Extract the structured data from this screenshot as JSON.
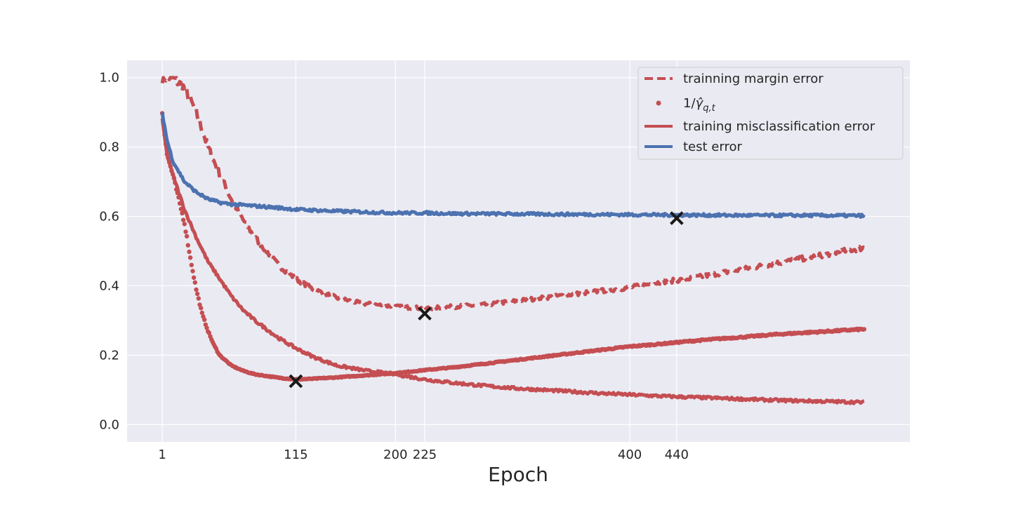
{
  "chart_data": {
    "type": "line",
    "title": "",
    "xlabel": "Epoch",
    "ylabel": "",
    "xlim": [
      -29,
      639
    ],
    "ylim": [
      -0.05,
      1.05
    ],
    "x_ticks": [
      1,
      115,
      200,
      225,
      400,
      440
    ],
    "x_tick_labels": [
      "1",
      "115",
      "200",
      "225",
      "400",
      "440"
    ],
    "y_ticks": [
      0.0,
      0.2,
      0.4,
      0.6,
      0.8,
      1.0
    ],
    "y_tick_labels": [
      "0.0",
      "0.2",
      "0.4",
      "0.6",
      "0.8",
      "1.0"
    ],
    "grid": true,
    "legend_position": "top-right",
    "colors": {
      "red": "#c44e52",
      "blue": "#4c72b0",
      "background": "#eaeaf2",
      "grid": "#ffffff",
      "marker": "#1a1a1a"
    },
    "series": [
      {
        "name": "trainning margin error",
        "style": "dashed",
        "color": "#c44e52",
        "x": [
          1,
          10,
          20,
          30,
          40,
          50,
          60,
          70,
          80,
          90,
          100,
          115,
          130,
          150,
          170,
          200,
          225,
          250,
          275,
          300,
          325,
          350,
          375,
          400,
          425,
          450,
          475,
          500,
          525,
          550,
          575,
          600
        ],
        "y": [
          1.0,
          1.0,
          0.97,
          0.9,
          0.8,
          0.72,
          0.65,
          0.59,
          0.54,
          0.5,
          0.46,
          0.42,
          0.39,
          0.365,
          0.35,
          0.34,
          0.335,
          0.34,
          0.345,
          0.355,
          0.365,
          0.375,
          0.385,
          0.395,
          0.41,
          0.42,
          0.435,
          0.45,
          0.465,
          0.48,
          0.495,
          0.51
        ]
      },
      {
        "name": "1/γ̂_{q,t}",
        "style": "dots",
        "color": "#c44e52",
        "x": [
          1,
          5,
          10,
          15,
          20,
          25,
          30,
          35,
          40,
          45,
          50,
          60,
          70,
          80,
          100,
          115,
          130,
          150,
          175,
          200,
          225,
          250,
          275,
          300,
          325,
          350,
          375,
          400,
          425,
          450,
          475,
          500,
          525,
          550,
          575,
          600
        ],
        "y": [
          0.9,
          0.78,
          0.72,
          0.65,
          0.58,
          0.48,
          0.39,
          0.32,
          0.27,
          0.23,
          0.2,
          0.17,
          0.155,
          0.145,
          0.135,
          0.13,
          0.132,
          0.136,
          0.142,
          0.148,
          0.157,
          0.165,
          0.175,
          0.185,
          0.195,
          0.205,
          0.215,
          0.225,
          0.232,
          0.24,
          0.247,
          0.253,
          0.26,
          0.265,
          0.27,
          0.275
        ]
      },
      {
        "name": "training misclassification error",
        "style": "solid",
        "color": "#c44e52",
        "x": [
          1,
          5,
          10,
          20,
          30,
          40,
          50,
          60,
          70,
          80,
          100,
          115,
          130,
          150,
          175,
          200,
          225,
          250,
          275,
          300,
          325,
          350,
          375,
          400,
          425,
          450,
          475,
          500,
          525,
          550,
          575,
          600
        ],
        "y": [
          0.88,
          0.78,
          0.72,
          0.62,
          0.54,
          0.47,
          0.42,
          0.37,
          0.33,
          0.3,
          0.25,
          0.22,
          0.195,
          0.17,
          0.155,
          0.145,
          0.13,
          0.12,
          0.112,
          0.105,
          0.1,
          0.095,
          0.09,
          0.086,
          0.082,
          0.079,
          0.076,
          0.073,
          0.07,
          0.068,
          0.066,
          0.064
        ]
      },
      {
        "name": "test error",
        "style": "solid",
        "color": "#4c72b0",
        "x": [
          1,
          5,
          10,
          15,
          20,
          30,
          40,
          50,
          60,
          80,
          100,
          115,
          150,
          200,
          225,
          250,
          300,
          350,
          400,
          440,
          500,
          550,
          600
        ],
        "y": [
          0.9,
          0.82,
          0.76,
          0.73,
          0.7,
          0.67,
          0.65,
          0.64,
          0.635,
          0.63,
          0.625,
          0.62,
          0.615,
          0.61,
          0.61,
          0.608,
          0.607,
          0.606,
          0.605,
          0.604,
          0.603,
          0.603,
          0.602
        ]
      }
    ],
    "markers": [
      {
        "x": 115,
        "y": 0.125
      },
      {
        "x": 225,
        "y": 0.32
      },
      {
        "x": 440,
        "y": 0.595
      }
    ]
  }
}
